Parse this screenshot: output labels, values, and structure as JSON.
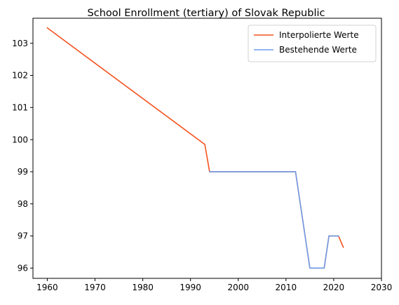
{
  "chart_data": {
    "type": "line",
    "title": "School Enrollment (tertiary) of Slovak Republic",
    "xlabel": "",
    "ylabel": "",
    "xlim": [
      1957,
      2030
    ],
    "ylim": [
      95.68,
      103.78
    ],
    "x_ticks": [
      1960,
      1970,
      1980,
      1990,
      2000,
      2010,
      2020,
      2030
    ],
    "y_ticks": [
      96,
      97,
      98,
      99,
      100,
      101,
      102,
      103
    ],
    "grid": false,
    "legend_position": "top-right",
    "series": [
      {
        "name": "Interpolierte Werte",
        "color": "#f4511e",
        "points": [
          [
            1960,
            103.48
          ],
          [
            1993,
            99.85
          ],
          [
            1994,
            99.0
          ],
          [
            2012,
            99.0
          ],
          [
            2015,
            96.0
          ],
          [
            2018,
            96.0
          ],
          [
            2019,
            97.0
          ],
          [
            2021,
            97.0
          ],
          [
            2022,
            96.65
          ]
        ]
      },
      {
        "name": "Bestehende Werte",
        "color": "#6d9eeb",
        "points": [
          [
            1994,
            99.0
          ],
          [
            2012,
            99.0
          ],
          [
            2015,
            96.0
          ],
          [
            2018,
            96.0
          ],
          [
            2019,
            97.0
          ],
          [
            2021,
            97.0
          ]
        ]
      }
    ]
  }
}
